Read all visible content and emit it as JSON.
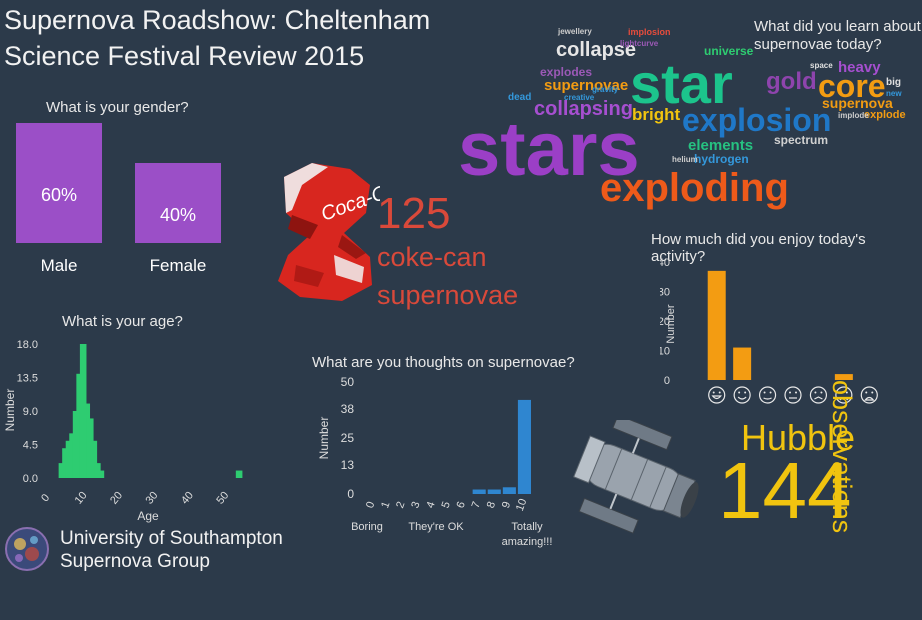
{
  "title_line1": "Supernova Roadshow: Cheltenham",
  "title_line2": "Science Festival Review 2015",
  "coke": {
    "number": "125",
    "line1": "coke-can",
    "line2": "supernovae",
    "logo_text": "Coca-Cola"
  },
  "hubble": {
    "word": "Hubble",
    "number": "144",
    "observations": "observations"
  },
  "footer": {
    "line1": "University of Southampton",
    "line2": "Supernova Group"
  },
  "wordcloud": {
    "question": "What did you learn about supernovae today?",
    "words": [
      {
        "text": "stars",
        "color": "#9b3fc6"
      },
      {
        "text": "star",
        "color": "#1cc48c"
      },
      {
        "text": "exploding",
        "color": "#ee5a1a"
      },
      {
        "text": "explosion",
        "color": "#1f78c8"
      },
      {
        "text": "core",
        "color": "#f39c12"
      },
      {
        "text": "collapse",
        "color": "#e6e6e6"
      },
      {
        "text": "collapsing",
        "color": "#a64fd0"
      },
      {
        "text": "gold",
        "color": "#8e44ad"
      },
      {
        "text": "bright",
        "color": "#f1c40f"
      },
      {
        "text": "elements",
        "color": "#26c281"
      },
      {
        "text": "supernovae",
        "color": "#f39c12"
      },
      {
        "text": "supernova",
        "color": "#f39c12"
      },
      {
        "text": "heavy",
        "color": "#a64fd0"
      },
      {
        "text": "explodes",
        "color": "#9b59b6"
      },
      {
        "text": "spectrum",
        "color": "#d0d0d0"
      },
      {
        "text": "hydrogen",
        "color": "#3498db"
      },
      {
        "text": "universe",
        "color": "#2ecc71"
      },
      {
        "text": "implosion",
        "color": "#e74c3c"
      },
      {
        "text": "dead",
        "color": "#3498db"
      },
      {
        "text": "explode",
        "color": "#f39c12"
      },
      {
        "text": "big",
        "color": "#e0e0e0"
      },
      {
        "text": "jewellery",
        "color": "#cccccc"
      },
      {
        "text": "lightcurve",
        "color": "#9b59b6"
      },
      {
        "text": "creative",
        "color": "#3498db"
      },
      {
        "text": "helium",
        "color": "#cccccc"
      },
      {
        "text": "gravity",
        "color": "#3498db"
      },
      {
        "text": "space",
        "color": "#e0e0e0"
      },
      {
        "text": "implode",
        "color": "#cccccc"
      },
      {
        "text": "new",
        "color": "#3498db"
      }
    ]
  },
  "chart_data": [
    {
      "type": "bar",
      "title": "What is your gender?",
      "categories": [
        "Male",
        "Female"
      ],
      "values": [
        60,
        40
      ],
      "value_labels": [
        "60%",
        "40%"
      ],
      "color": "#9b4fc7"
    },
    {
      "type": "bar",
      "title": "What is your age?",
      "xlabel": "Age",
      "ylabel": "Number",
      "yticks": [
        "0.0",
        "4.5",
        "9.0",
        "13.5",
        "18.0"
      ],
      "xticks": [
        "0",
        "10",
        "20",
        "30",
        "40",
        "50"
      ],
      "ylim": [
        0,
        18
      ],
      "xlim": [
        0,
        57
      ],
      "bin_width": 2,
      "x": [
        4,
        6,
        8,
        10,
        12,
        14,
        54
      ],
      "values": [
        2,
        5,
        9,
        18,
        8,
        2,
        1
      ],
      "extra_bins": {
        "x": [
          5,
          7,
          9,
          11,
          13,
          15
        ],
        "values": [
          4,
          6,
          14,
          10,
          5,
          1
        ]
      },
      "color": "#2ecc71"
    },
    {
      "type": "bar",
      "title": "What are you thoughts on supernovae?",
      "ylabel": "Number",
      "yticks": [
        "0",
        "13",
        "25",
        "38",
        "50"
      ],
      "ylim": [
        0,
        50
      ],
      "categories": [
        "0",
        "1",
        "2",
        "3",
        "4",
        "5",
        "6",
        "7",
        "8",
        "9",
        "10"
      ],
      "values": [
        0,
        0,
        0,
        0,
        0,
        0,
        0,
        2,
        2,
        3,
        42
      ],
      "category_notes": [
        "Boring",
        "They're OK",
        "Totally amazing!!!"
      ],
      "color": "#2f86d0"
    },
    {
      "type": "bar",
      "title": "How much did you enjoy today's activity?",
      "ylabel": "Number",
      "yticks": [
        "0",
        "10",
        "20",
        "30",
        "40"
      ],
      "ylim": [
        0,
        40
      ],
      "categories": [
        "very-happy",
        "happy",
        "content",
        "neutral",
        "unsure",
        "sad",
        "very-sad"
      ],
      "values": [
        37,
        11,
        0,
        0,
        0,
        2,
        0
      ],
      "color": "#f39c12"
    }
  ]
}
